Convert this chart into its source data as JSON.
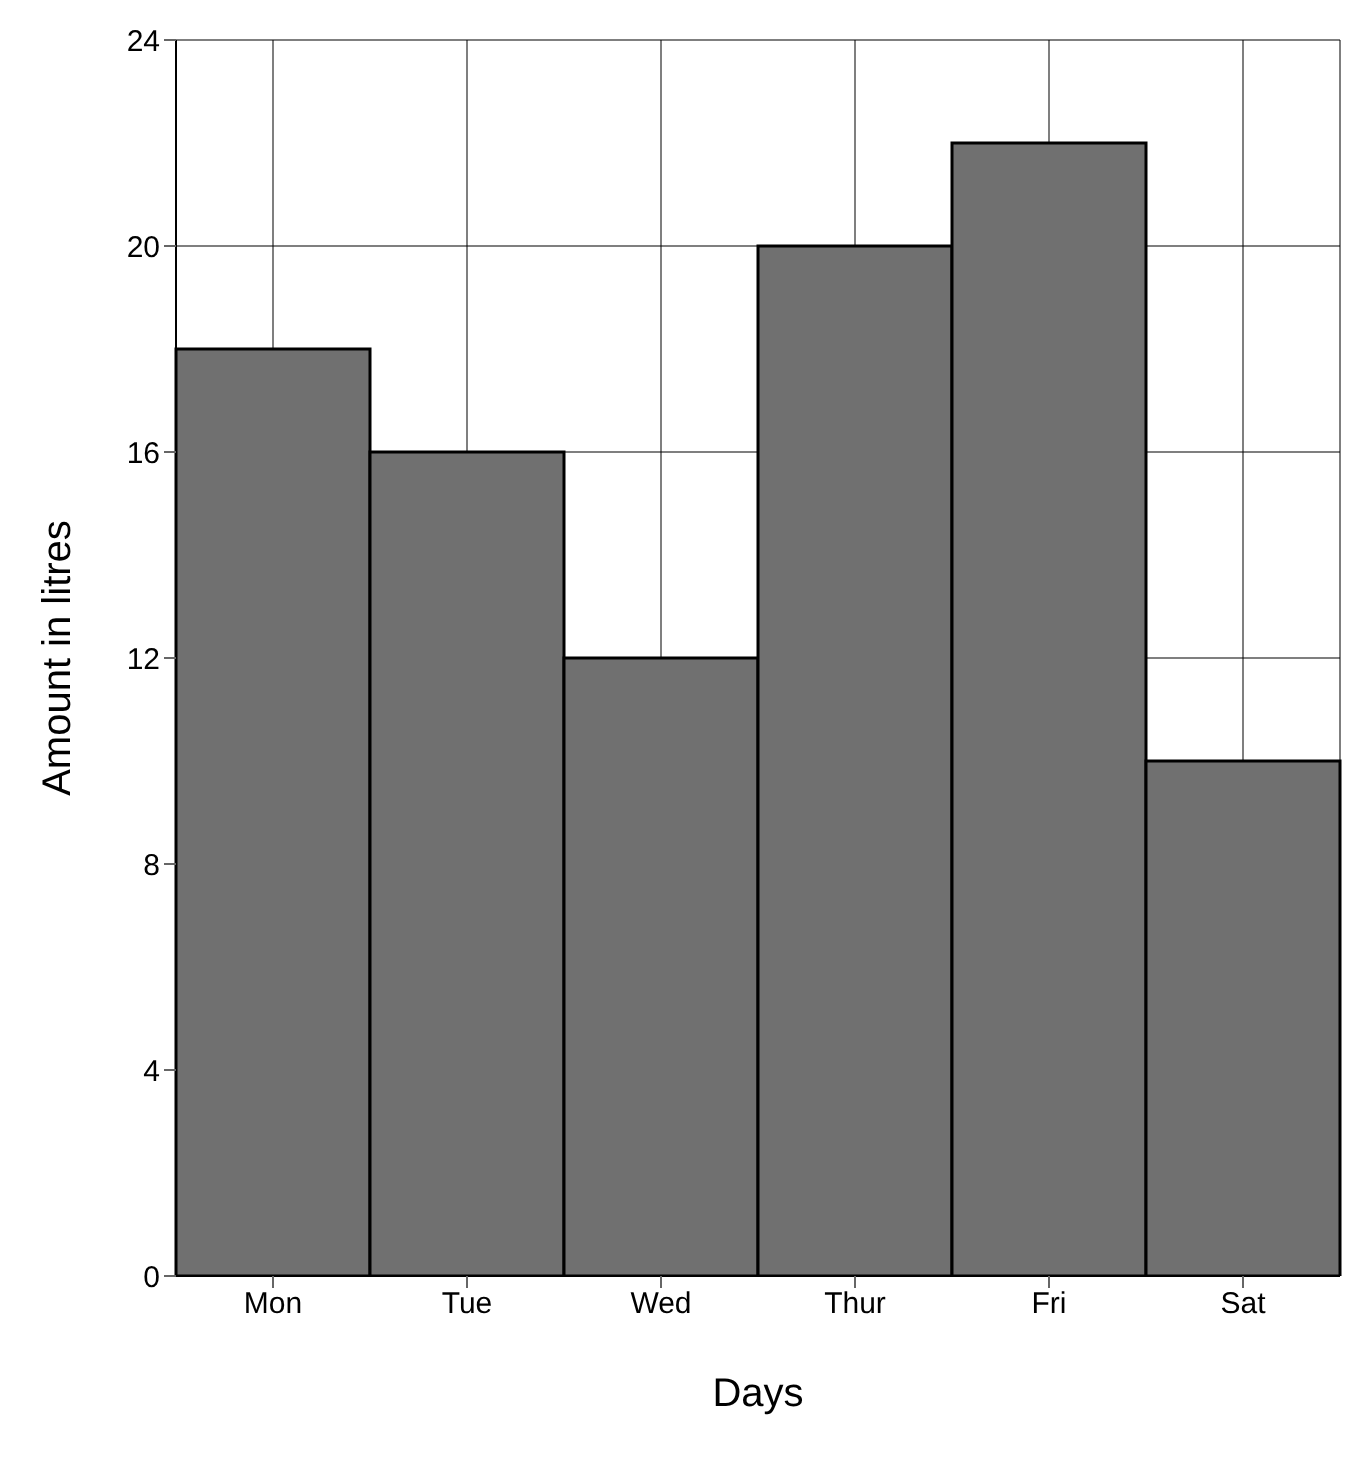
{
  "chart_data": {
    "type": "bar",
    "xlabel": "Days",
    "ylabel": "Amount in litres",
    "categories": [
      "Mon",
      "Tue",
      "Wed",
      "Thur",
      "Fri",
      "Sat"
    ],
    "values": [
      18,
      16,
      12,
      20,
      22,
      10
    ],
    "color": "#707070",
    "ylim": [
      0,
      24
    ],
    "yticks": [
      0,
      4,
      8,
      12,
      16,
      20,
      24
    ],
    "grid": true
  }
}
